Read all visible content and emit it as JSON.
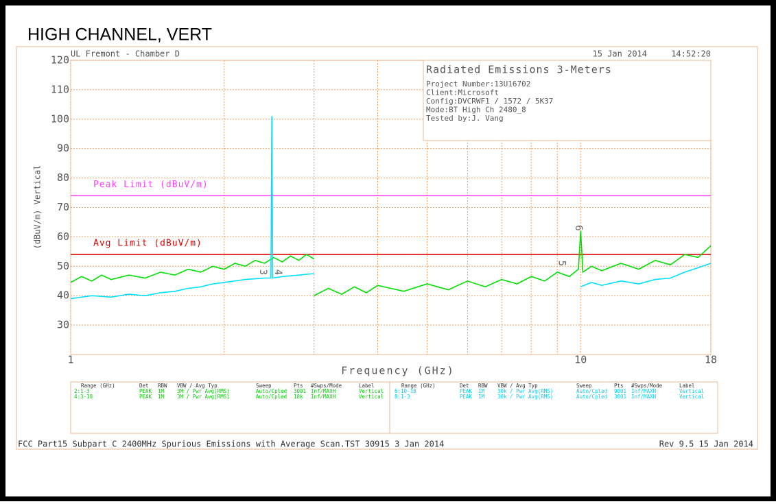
{
  "chart_data": {
    "type": "line",
    "title": "HIGH CHANNEL, VERT",
    "site": "UL Fremont - Chamber D",
    "date": "15 Jan 2014",
    "time": "14:52:20",
    "xlabel": "Frequency (GHz)",
    "ylabel": "(dBuV/m) Vertical",
    "xscale": "log",
    "xlim": [
      1,
      18
    ],
    "xticks": [
      1,
      10,
      18
    ],
    "x_grid": [
      2,
      3,
      4,
      5,
      6,
      7,
      8,
      9
    ],
    "ylim": [
      20,
      120
    ],
    "yticks": [
      30,
      40,
      50,
      60,
      70,
      80,
      90,
      100,
      110,
      120
    ],
    "grid": true,
    "grid_color": "#f0a060",
    "series": [
      {
        "color": "#00e000",
        "x": [
          1,
          1.05,
          1.1,
          1.15,
          1.2,
          1.3,
          1.4,
          1.5,
          1.6,
          1.7,
          1.8,
          1.9,
          2,
          2.1,
          2.2,
          2.3,
          2.4,
          2.5,
          2.6,
          2.7,
          2.8,
          2.9,
          3,
          null,
          3,
          3.2,
          3.4,
          3.6,
          3.8,
          4,
          4.5,
          5,
          5.5,
          6,
          6.5,
          7,
          7.5,
          8,
          8.5,
          9,
          9.5,
          9.9,
          10,
          10.1,
          10.5,
          11,
          12,
          13,
          14,
          15,
          16,
          17,
          18
        ],
        "values": [
          44.5,
          46.5,
          45,
          47,
          45.5,
          47,
          46,
          48,
          47,
          49,
          48,
          50,
          49,
          51,
          50,
          52,
          51,
          53,
          51.5,
          53.5,
          52,
          54,
          52.5,
          null,
          40,
          42.5,
          40.5,
          43,
          41,
          43.5,
          41.5,
          44,
          42,
          45,
          43,
          45.5,
          44,
          46.5,
          45,
          48,
          46.5,
          49,
          62,
          48,
          50,
          48.5,
          51,
          49,
          52,
          50.5,
          54,
          53,
          57
        ]
      },
      {
        "color": "#00e0ff",
        "x": [
          1,
          1.1,
          1.2,
          1.3,
          1.4,
          1.5,
          1.6,
          1.7,
          1.8,
          1.9,
          2,
          2.2,
          2.4,
          2.47,
          2.48,
          2.49,
          2.6,
          2.8,
          3,
          null,
          10,
          10.5,
          11,
          12,
          13,
          14,
          15,
          16,
          17,
          18
        ],
        "values": [
          39,
          40,
          39.5,
          40.5,
          40,
          41,
          41.5,
          42.5,
          43,
          44,
          44.5,
          45.5,
          46,
          46,
          101,
          46,
          46.5,
          47,
          47.5,
          null,
          43,
          44.5,
          43.5,
          45,
          44,
          45.5,
          46,
          48,
          49.5,
          51
        ]
      }
    ],
    "limits": [
      {
        "label": "Peak Limit (dBuV/m)",
        "value": 74,
        "color": "#ff40ff"
      },
      {
        "label": "Avg Limit (dBuV/m)",
        "value": 54,
        "color": "#e00000"
      }
    ],
    "markers": [
      {
        "label": "3",
        "x": 2.38,
        "y": 48
      },
      {
        "label": "4",
        "x": 2.55,
        "y": 48
      },
      {
        "label": "5",
        "x": 9.17,
        "y": 51
      },
      {
        "label": "6",
        "x": 9.9,
        "y": 63
      }
    ],
    "info_box": {
      "title": "Radiated Emissions 3-Meters",
      "lines": [
        "Project Number:13U16702",
        "Client:Microsoft",
        "Config:DVCRWF1 / 1572 / 5K37",
        "Mode:BT High Ch 2480_8",
        "Tested by:J. Vang"
      ]
    },
    "table": {
      "columns": [
        "Range (GHz)",
        "Det",
        "RBW",
        "VBW / Avg Typ",
        "Sweep",
        "Pts",
        "#Swps/Mode",
        "Label"
      ],
      "left": {
        "color": "#00d000",
        "rows": [
          [
            "2:1-3",
            "PEAK",
            "1M",
            "3M / Pwr Avg(RMS)",
            "Auto/Cpled",
            "3001",
            "Inf/MAXH",
            "Vertical"
          ],
          [
            "4:3-18",
            "PEAK",
            "1M",
            "3M / Pwr Avg(RMS)",
            "Auto/Cpled",
            "18k",
            "Inf/MAXH",
            "Vertical"
          ]
        ]
      },
      "right": {
        "color": "#00d0f0",
        "rows": [
          [
            "6:10-18",
            "PEAK",
            "1M",
            "30k / Pwr Avg(RMS)",
            "Auto/Cpled",
            "9001",
            "Inf/MAXH",
            "Vertical"
          ],
          [
            "8:1-3",
            "PEAK",
            "1M",
            "30k / Pwr Avg(RMS)",
            "Auto/Cpled",
            "3001",
            "Inf/MAXH",
            "Vertical"
          ]
        ]
      }
    },
    "footer_left": "FCC Part15 Subpart C 2400MHz Spurious Emissions with Average Scan.TST 30915  3 Jan 2014",
    "footer_right": "Rev 9.5 15 Jan 2014"
  }
}
